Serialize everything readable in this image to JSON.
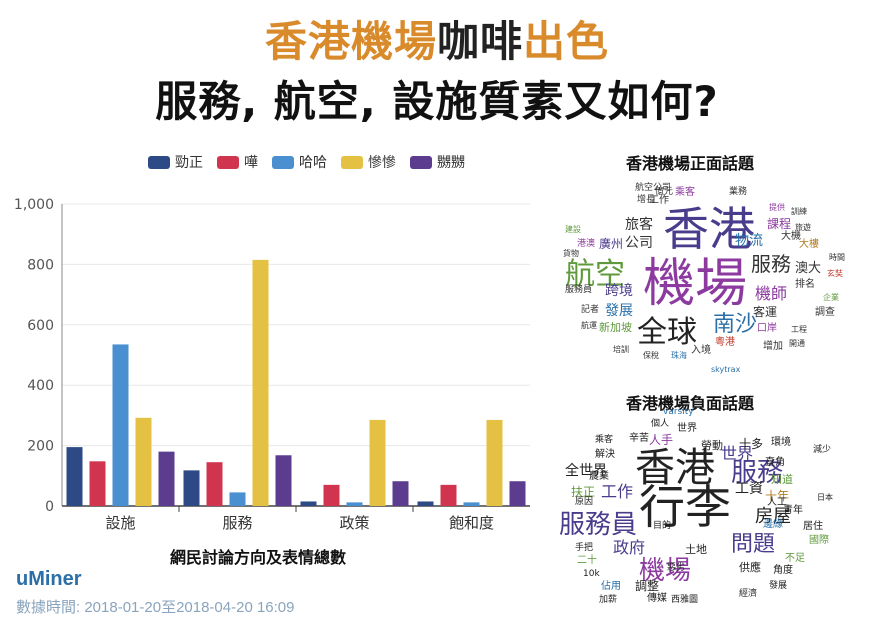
{
  "header": {
    "title_part1": "香港機場",
    "title_part2": "咖啡",
    "title_part3": "出色",
    "title_line2": "服務, 航空, 設施質素又如何?",
    "accent_color": "#d98a2b",
    "dark_color": "#222222"
  },
  "chart_data": {
    "type": "bar",
    "categories": [
      "設施",
      "服務",
      "政策",
      "飽和度"
    ],
    "series": [
      {
        "name": "勁正",
        "color": "#2e4a86",
        "values": [
          195,
          118,
          15,
          15
        ]
      },
      {
        "name": "嘩",
        "color": "#d0344f",
        "values": [
          148,
          145,
          70,
          70
        ]
      },
      {
        "name": "哈哈",
        "color": "#4a8fd0",
        "values": [
          535,
          45,
          12,
          12
        ]
      },
      {
        "name": "慘慘",
        "color": "#e4c043",
        "values": [
          292,
          815,
          285,
          285
        ]
      },
      {
        "name": "嬲嬲",
        "color": "#5b3c8e",
        "values": [
          180,
          168,
          82,
          82
        ]
      }
    ],
    "ylim": [
      0,
      1000
    ],
    "yticks": [
      "0",
      "200",
      "400",
      "600",
      "800",
      "1,000"
    ],
    "grid": true,
    "legend_position": "top",
    "caption": "網民討論方向及表情總數"
  },
  "footer": {
    "brand_prefix": "u",
    "brand_name": "Miner",
    "timestamp": "數據時間: 2018-01-20至2018-04-20 16:09"
  },
  "positive_cloud": {
    "title": "香港機場正面話題",
    "words": [
      {
        "text": "香港",
        "size": 46,
        "color": "#4a3c8c"
      },
      {
        "text": "機場",
        "size": 52,
        "color": "#8c3aa0"
      },
      {
        "text": "航空",
        "size": 30,
        "color": "#5e9a3b"
      },
      {
        "text": "全球",
        "size": 30,
        "color": "#222222"
      },
      {
        "text": "南沙",
        "size": 22,
        "color": "#2a6fa8"
      },
      {
        "text": "服務",
        "size": 20,
        "color": "#333333"
      },
      {
        "text": "機師",
        "size": 16,
        "color": "#8c3aa0"
      },
      {
        "text": "旅客",
        "size": 14,
        "color": "#333333"
      },
      {
        "text": "公司",
        "size": 14,
        "color": "#333333"
      },
      {
        "text": "物流",
        "size": 14,
        "color": "#2a6fa8"
      },
      {
        "text": "跨境",
        "size": 14,
        "color": "#4a3c8c"
      },
      {
        "text": "發展",
        "size": 14,
        "color": "#2a6fa8"
      },
      {
        "text": "澳大",
        "size": 13,
        "color": "#333333"
      },
      {
        "text": "廣州",
        "size": 12,
        "color": "#4a3c8c"
      },
      {
        "text": "客運",
        "size": 12,
        "color": "#333333"
      },
      {
        "text": "課程",
        "size": 12,
        "color": "#8c3aa0"
      },
      {
        "text": "大機",
        "size": 10,
        "color": "#333333"
      },
      {
        "text": "大樓",
        "size": 10,
        "color": "#b07b20"
      },
      {
        "text": "排名",
        "size": 10,
        "color": "#333333"
      },
      {
        "text": "調查",
        "size": 10,
        "color": "#333333"
      },
      {
        "text": "口岸",
        "size": 10,
        "color": "#8c3aa0"
      },
      {
        "text": "增加",
        "size": 10,
        "color": "#333333"
      },
      {
        "text": "粵港",
        "size": 10,
        "color": "#c0392b"
      },
      {
        "text": "入境",
        "size": 10,
        "color": "#333333"
      },
      {
        "text": "新加坡",
        "size": 11,
        "color": "#5e9a3b"
      },
      {
        "text": "工作",
        "size": 10,
        "color": "#333333"
      },
      {
        "text": "乘客",
        "size": 10,
        "color": "#8c3aa0"
      },
      {
        "text": "業務",
        "size": 9,
        "color": "#333333"
      },
      {
        "text": "億元",
        "size": 9,
        "color": "#333333"
      },
      {
        "text": "航空公司",
        "size": 9,
        "color": "#333333"
      },
      {
        "text": "增長",
        "size": 9,
        "color": "#333333"
      },
      {
        "text": "港澳",
        "size": 9,
        "color": "#8c3aa0"
      },
      {
        "text": "建設",
        "size": 8,
        "color": "#5e9a3b"
      },
      {
        "text": "貨物",
        "size": 8,
        "color": "#333333"
      },
      {
        "text": "服務員",
        "size": 9,
        "color": "#333333"
      },
      {
        "text": "記者",
        "size": 9,
        "color": "#333333"
      },
      {
        "text": "航運",
        "size": 8,
        "color": "#333333"
      },
      {
        "text": "培訓",
        "size": 8,
        "color": "#333333"
      },
      {
        "text": "保稅",
        "size": 8,
        "color": "#333333"
      },
      {
        "text": "珠海",
        "size": 8,
        "color": "#2a6fa8"
      },
      {
        "text": "skytrax",
        "size": 8,
        "color": "#2a6fa8"
      },
      {
        "text": "提供",
        "size": 8,
        "color": "#8c3aa0"
      },
      {
        "text": "訓練",
        "size": 8,
        "color": "#333333"
      },
      {
        "text": "旅遊",
        "size": 8,
        "color": "#333333"
      },
      {
        "text": "時間",
        "size": 8,
        "color": "#333333"
      },
      {
        "text": "玄奘",
        "size": 8,
        "color": "#c0392b"
      },
      {
        "text": "企業",
        "size": 8,
        "color": "#5e9a3b"
      },
      {
        "text": "工程",
        "size": 8,
        "color": "#333333"
      },
      {
        "text": "開通",
        "size": 8,
        "color": "#333333"
      }
    ]
  },
  "negative_cloud": {
    "title": "香港機場負面話題",
    "words": [
      {
        "text": "行李",
        "size": 46,
        "color": "#222222"
      },
      {
        "text": "香港",
        "size": 40,
        "color": "#222222"
      },
      {
        "text": "服務員",
        "size": 26,
        "color": "#4a3c8c"
      },
      {
        "text": "機場",
        "size": 26,
        "color": "#8c3aa0"
      },
      {
        "text": "服務",
        "size": 26,
        "color": "#4a3c8c"
      },
      {
        "text": "問題",
        "size": 22,
        "color": "#4a3c8c"
      },
      {
        "text": "房屋",
        "size": 18,
        "color": "#222222"
      },
      {
        "text": "世界",
        "size": 16,
        "color": "#4a3c8c"
      },
      {
        "text": "工作",
        "size": 16,
        "color": "#4a3c8c"
      },
      {
        "text": "政府",
        "size": 16,
        "color": "#4a3c8c"
      },
      {
        "text": "全世界",
        "size": 14,
        "color": "#222222"
      },
      {
        "text": "工資",
        "size": 14,
        "color": "#222222"
      },
      {
        "text": "十多",
        "size": 12,
        "color": "#222222"
      },
      {
        "text": "十年",
        "size": 12,
        "color": "#b07b20"
      },
      {
        "text": "人手",
        "size": 12,
        "color": "#8c3aa0"
      },
      {
        "text": "勞動",
        "size": 11,
        "color": "#222222"
      },
      {
        "text": "調整",
        "size": 12,
        "color": "#222222"
      },
      {
        "text": "扶正",
        "size": 12,
        "color": "#5e9a3b"
      },
      {
        "text": "供應",
        "size": 11,
        "color": "#222222"
      },
      {
        "text": "角度",
        "size": 10,
        "color": "#222222"
      },
      {
        "text": "土地",
        "size": 11,
        "color": "#222222"
      },
      {
        "text": "知道",
        "size": 11,
        "color": "#5e9a3b"
      },
      {
        "text": "直角",
        "size": 10,
        "color": "#222222"
      },
      {
        "text": "世界",
        "size": 10,
        "color": "#222222"
      },
      {
        "text": "環境",
        "size": 10,
        "color": "#222222"
      },
      {
        "text": "人工",
        "size": 10,
        "color": "#222222"
      },
      {
        "text": "青年",
        "size": 10,
        "color": "#222222"
      },
      {
        "text": "居住",
        "size": 10,
        "color": "#222222"
      },
      {
        "text": "國際",
        "size": 10,
        "color": "#5e9a3b"
      },
      {
        "text": "邊緣",
        "size": 10,
        "color": "#2a6fa8"
      },
      {
        "text": "不足",
        "size": 10,
        "color": "#5e9a3b"
      },
      {
        "text": "減少",
        "size": 9,
        "color": "#222222"
      },
      {
        "text": "日本",
        "size": 8,
        "color": "#222222"
      },
      {
        "text": "發展",
        "size": 9,
        "color": "#222222"
      },
      {
        "text": "經濟",
        "size": 9,
        "color": "#222222"
      },
      {
        "text": "西雅圖",
        "size": 9,
        "color": "#222222"
      },
      {
        "text": "傳媒",
        "size": 10,
        "color": "#222222"
      },
      {
        "text": "佔用",
        "size": 10,
        "color": "#2a6fa8"
      },
      {
        "text": "加薪",
        "size": 9,
        "color": "#222222"
      },
      {
        "text": "二十",
        "size": 10,
        "color": "#5e9a3b"
      },
      {
        "text": "10k",
        "size": 9,
        "color": "#222222"
      },
      {
        "text": "手把",
        "size": 9,
        "color": "#222222"
      },
      {
        "text": "惡劣",
        "size": 9,
        "color": "#222222"
      },
      {
        "text": "目的",
        "size": 9,
        "color": "#222222"
      },
      {
        "text": "原因",
        "size": 9,
        "color": "#222222"
      },
      {
        "text": "農業",
        "size": 10,
        "color": "#222222"
      },
      {
        "text": "解決",
        "size": 10,
        "color": "#222222"
      },
      {
        "text": "辛苦",
        "size": 10,
        "color": "#222222"
      },
      {
        "text": "個人",
        "size": 9,
        "color": "#222222"
      },
      {
        "text": "乘客",
        "size": 9,
        "color": "#222222"
      },
      {
        "text": "varsity",
        "size": 9,
        "color": "#2a6fa8"
      }
    ]
  }
}
